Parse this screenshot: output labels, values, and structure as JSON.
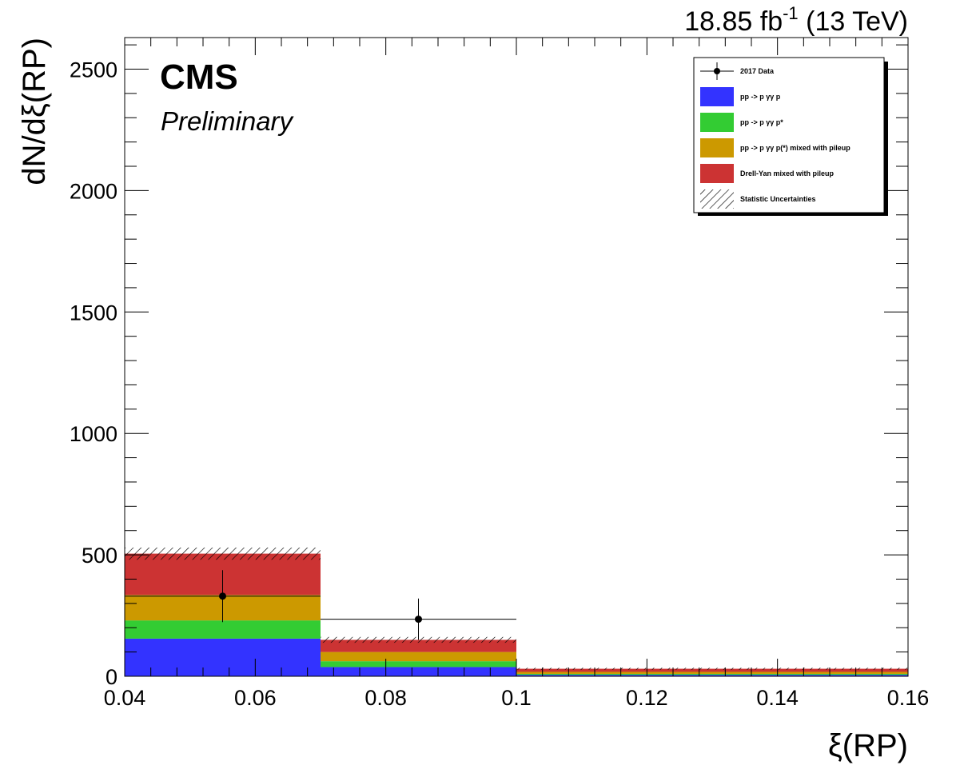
{
  "chart_data": {
    "type": "bar",
    "stacked": true,
    "xlabel": "ξ(RP)",
    "ylabel": "dN/dξ(RP)",
    "xlim": [
      0.04,
      0.16
    ],
    "ylim": [
      0,
      2630
    ],
    "x_ticks": [
      "0.04",
      "0.06",
      "0.08",
      "0.1",
      "0.12",
      "0.14",
      "0.16"
    ],
    "y_ticks": [
      "0",
      "500",
      "1000",
      "1500",
      "2000",
      "2500"
    ],
    "bin_edges": [
      0.04,
      0.07,
      0.1,
      0.16
    ],
    "series": [
      {
        "name": "pp -> p γγ p",
        "color": "#3333ff",
        "values": [
          155,
          38,
          6
        ]
      },
      {
        "name": "pp -> p γγ p*",
        "color": "#33cc33",
        "values": [
          75,
          24,
          4
        ]
      },
      {
        "name": "pp -> p γγ p(*) mixed with pileup",
        "color": "#cc9900",
        "values": [
          105,
          38,
          8
        ]
      },
      {
        "name": "Drell-Yan mixed with pileup",
        "color": "#cc3333",
        "values": [
          170,
          50,
          13
        ]
      }
    ],
    "stat_uncertainty": {
      "name": "Statistic Uncertainties",
      "values": [
        25,
        12,
        4
      ]
    },
    "data_points": {
      "name": "2017 Data",
      "x": [
        0.055,
        0.085
      ],
      "y": [
        330,
        235
      ],
      "y_err": [
        107,
        85
      ],
      "x_err": [
        0.015,
        0.015
      ]
    },
    "legend_position": "top-right"
  },
  "annotations": {
    "cms": "CMS",
    "preliminary": "Preliminary",
    "lumi_value": "18.85 fb",
    "lumi_exp": "-1",
    "lumi_energy": " (13 TeV)"
  },
  "legend": {
    "items": [
      {
        "label": "2017 Data",
        "kind": "marker"
      },
      {
        "label": "pp -> p γγ p",
        "kind": "fill",
        "color": "#3333ff"
      },
      {
        "label": "pp -> p γγ p*",
        "kind": "fill",
        "color": "#33cc33"
      },
      {
        "label": "pp -> p γγ p(*) mixed with pileup",
        "kind": "fill",
        "color": "#cc9900"
      },
      {
        "label": "Drell-Yan mixed with pileup",
        "kind": "fill",
        "color": "#cc3333"
      },
      {
        "label": "Statistic Uncertainties",
        "kind": "hatch"
      }
    ]
  }
}
